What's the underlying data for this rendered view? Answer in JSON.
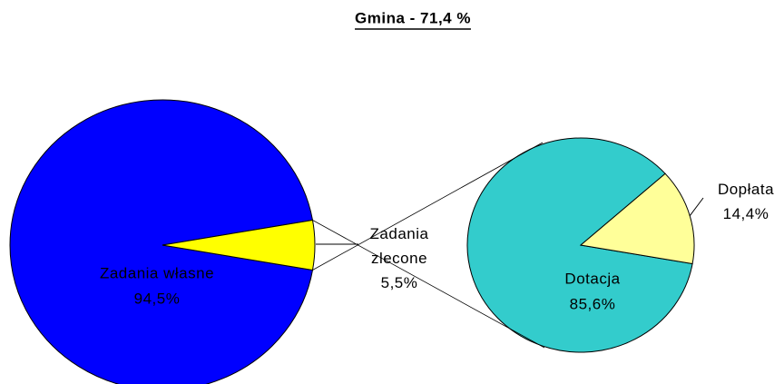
{
  "title": "Gmina - 71,4 %",
  "chart_data": [
    {
      "type": "pie",
      "categories": [
        "Zadania własne",
        "Zadania zlecone"
      ],
      "values": [
        94.5,
        5.5
      ],
      "value_labels": [
        "94,5%",
        "5,5%"
      ],
      "colors": [
        "#0000ff",
        "#ffff00"
      ]
    },
    {
      "type": "pie",
      "categories": [
        "Dotacja",
        "Dopłata"
      ],
      "values": [
        85.6,
        14.4
      ],
      "value_labels": [
        "85,6%",
        "14,4%"
      ],
      "colors": [
        "#33cccc",
        "#ffff99"
      ]
    }
  ]
}
